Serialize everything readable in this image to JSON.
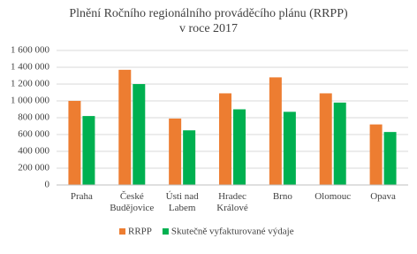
{
  "chart_data": {
    "type": "bar",
    "title": "Plnění Ročního regionálního prováděcího plánu (RRPP)\nv roce 2017",
    "categories": [
      "Praha",
      "České\nBudějovice",
      "Ústi nad\nLabem",
      "Hradec\nKrálové",
      "Brno",
      "Olomouc",
      "Opava"
    ],
    "series": [
      {
        "name": "RRPP",
        "color": "#ED7D31",
        "values": [
          1000000,
          1370000,
          790000,
          1090000,
          1280000,
          1090000,
          720000
        ]
      },
      {
        "name": "Skutečně vyfakturované výdaje",
        "color": "#00B050",
        "values": [
          820000,
          1200000,
          650000,
          900000,
          870000,
          980000,
          630000
        ]
      }
    ],
    "ylim": [
      0,
      1600000
    ],
    "yticks": [
      0,
      {
        "value": 200000,
        "label": "200 000"
      },
      {
        "value": 400000,
        "label": "400 000"
      },
      {
        "value": 600000,
        "label": "600 000"
      },
      {
        "value": 800000,
        "label": "800 000"
      },
      {
        "value": 1000000,
        "label": "1 000 000"
      },
      {
        "value": 1200000,
        "label": "1 200 000"
      },
      {
        "value": 1400000,
        "label": "1 400 000"
      },
      {
        "value": 1600000,
        "label": "1 600 000"
      }
    ],
    "grid": true,
    "legend": "bottom"
  }
}
